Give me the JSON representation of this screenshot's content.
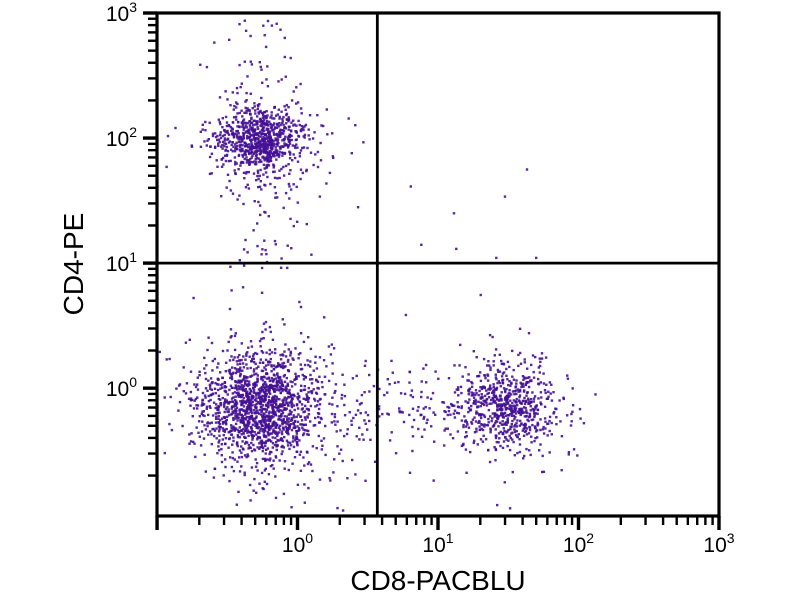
{
  "figure": {
    "background": "#ffffff",
    "description": "Flow cytometry two-parameter dot plot with quadrant gates"
  },
  "chart_data": {
    "type": "scatter",
    "subtype": "flow-cytometry-dot-plot",
    "title": "",
    "xlabel": "CD8-PACBLU",
    "ylabel": "CD4-PE",
    "x_scale": "log",
    "y_scale": "log",
    "x_range": [
      0.1,
      1000
    ],
    "y_range": [
      0.095,
      1000
    ],
    "x_tick_exponents": [
      0,
      1,
      2,
      3
    ],
    "y_tick_exponents": [
      0,
      1,
      2,
      3
    ],
    "tick_base": "10",
    "grid": false,
    "legend": false,
    "dot_color": "#440f93",
    "axis_color": "#000000",
    "quadrant_gates": {
      "x": 3.7,
      "y": 10.0
    },
    "populations": [
      {
        "name": "cd4-positive-lymphocytes",
        "quadrant": "upper-left",
        "count": 850,
        "x_center": 0.54,
        "x_sigma_decades": 0.155,
        "y_center": 98,
        "y_sigma_decades": 0.125
      },
      {
        "name": "cd4-bright-sparse-above",
        "quadrant": "upper-left",
        "count": 42,
        "x_center": 0.54,
        "x_sigma_decades": 0.18,
        "y_log_range": [
          2.15,
          2.95
        ]
      },
      {
        "name": "cd4-trail-below-cluster",
        "quadrant": "upper-left",
        "count": 55,
        "x_center": 0.59,
        "x_sigma_decades": 0.14,
        "y_log_range": [
          0.95,
          1.8
        ]
      },
      {
        "name": "double-negative-cells",
        "quadrant": "lower-left",
        "count": 1600,
        "x_center": 0.54,
        "x_sigma_decades": 0.21,
        "y_center": 0.7,
        "y_sigma_decades": 0.21
      },
      {
        "name": "bridge-scatter-lower-middle",
        "quadrant": "lower-right",
        "count": 170,
        "x_center": 6.0,
        "x_sigma_decades": 0.38,
        "y_center": 0.66,
        "y_sigma_decades": 0.22
      },
      {
        "name": "cd8-positive-lymphocytes",
        "quadrant": "lower-right",
        "count": 700,
        "x_center": 31,
        "x_sigma_decades": 0.17,
        "y_center": 0.73,
        "y_sigma_decades": 0.17
      }
    ],
    "outlier_points": [
      [
        6.4,
        41
      ],
      [
        43,
        56
      ],
      [
        30,
        34
      ],
      [
        13,
        25
      ],
      [
        7.6,
        14
      ],
      [
        13.5,
        13
      ],
      [
        26,
        11
      ],
      [
        50,
        11
      ],
      [
        2.7,
        28
      ]
    ],
    "clipped_top_points_x": [
      0.22,
      0.3,
      0.38,
      0.45,
      0.5,
      0.56,
      0.63,
      0.78,
      1.02
    ]
  }
}
